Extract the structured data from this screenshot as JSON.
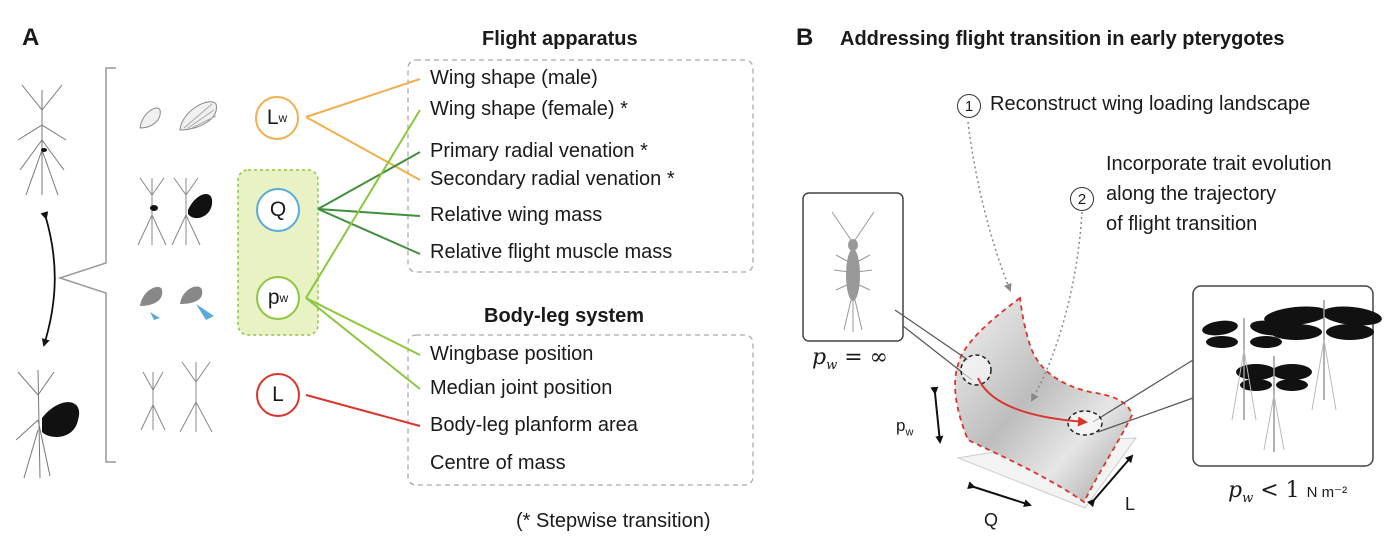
{
  "panelA": {
    "label": "A",
    "flight_title": "Flight apparatus",
    "flight_items": [
      "Wing shape (male)",
      "Wing shape (female) *",
      "Primary radial venation *",
      "Secondary radial venation *",
      "Relative wing mass",
      "Relative flight muscle mass"
    ],
    "body_title": "Body-leg system",
    "body_items": [
      "Wingbase position",
      "Median joint position",
      "Body-leg planform area",
      "Centre of mass"
    ],
    "footnote": "(* Stepwise transition)",
    "params": {
      "lw_main": "L",
      "lw_sub": "w",
      "q": "Q",
      "pw_main": "p",
      "pw_sub": "w",
      "l": "L"
    }
  },
  "panelB": {
    "label": "B",
    "title": "Addressing flight transition in early pterygotes",
    "step1_num": "1",
    "step1_text": "Reconstruct wing loading landscape",
    "step2_num": "2",
    "step2_text": [
      "Incorporate trait evolution",
      "along the trajectory",
      "of flight transition"
    ],
    "left_eq_main": "p",
    "left_eq_sub": "w",
    "left_eq_rest": " = ∞",
    "right_eq_main": "p",
    "right_eq_sub": "w",
    "right_eq_rest": " < 1 ",
    "right_eq_unit": "N m⁻²",
    "axis_pw_main": "p",
    "axis_pw_sub": "w",
    "axis_q": "Q",
    "axis_l": "L"
  },
  "colors": {
    "orange": "#efb04e",
    "blue": "#5aaadc",
    "light_green": "#8dc63f",
    "dark_green": "#3f8f3c",
    "red": "#d9352b",
    "highlight_box": "#e8f2c4",
    "arrow_blue": "#5aaadc"
  },
  "icons": [
    "insect-silhouette-icon",
    "wing-outline-icon",
    "dragonfly-icon",
    "silverfish-icon",
    "double-arrow-icon"
  ]
}
